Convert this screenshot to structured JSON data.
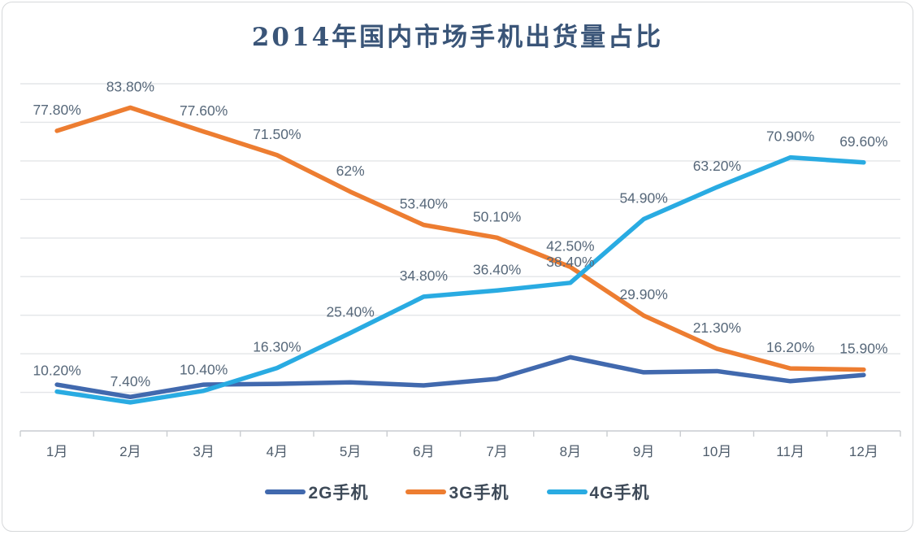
{
  "chart_data": {
    "type": "line",
    "title": "2014年国内市场手机出货量占比",
    "categories": [
      "1月",
      "2月",
      "3月",
      "4月",
      "5月",
      "6月",
      "7月",
      "8月",
      "9月",
      "10月",
      "11月",
      "12月"
    ],
    "series": [
      {
        "name": "2G手机",
        "color": "#4169ae",
        "values": [
          12,
          8.8,
          12,
          12.2,
          12.6,
          11.8,
          13.5,
          19.1,
          15.2,
          15.5,
          12.9,
          14.5
        ],
        "labels": [
          "",
          "",
          "",
          "",
          "",
          "",
          "",
          "",
          "",
          "",
          "",
          ""
        ]
      },
      {
        "name": "3G手机",
        "color": "#ed7d31",
        "values": [
          77.8,
          83.8,
          77.6,
          71.5,
          62,
          53.4,
          50.1,
          42.5,
          29.9,
          21.3,
          16.2,
          15.9
        ],
        "labels": [
          "77.80%",
          "83.80%",
          "77.60%",
          "71.50%",
          "62%",
          "53.40%",
          "50.10%",
          "42.50%",
          "29.90%",
          "21.30%",
          "16.20%",
          "15.90%"
        ]
      },
      {
        "name": "4G手机",
        "color": "#29abe2",
        "values": [
          10.2,
          7.4,
          10.4,
          16.3,
          25.4,
          34.8,
          36.4,
          38.4,
          54.9,
          63.2,
          70.9,
          69.6
        ],
        "labels": [
          "10.20%",
          "7.40%",
          "10.40%",
          "16.30%",
          "25.40%",
          "34.80%",
          "36.40%",
          "38.40%",
          "54.90%",
          "63.20%",
          "70.90%",
          "69.60%"
        ]
      }
    ],
    "ylim": [
      0,
      90
    ],
    "grid": {
      "horizontal": true,
      "step_percent": 10,
      "vertical": false
    },
    "y_axis_labels_shown": false,
    "legend_position": "bottom",
    "colors": {
      "grid": "#e3e5e8",
      "axis": "#c9ccd0",
      "data_label": "#57687a",
      "tick_label": "#4f5d6c",
      "title": "#3a5578",
      "legend_text": "#3e4a58",
      "background": "#ffffff",
      "frame_border": "#d6d8da"
    }
  },
  "legend": {
    "items": [
      {
        "label": "2G手机"
      },
      {
        "label": "3G手机"
      },
      {
        "label": "4G手机"
      }
    ]
  }
}
